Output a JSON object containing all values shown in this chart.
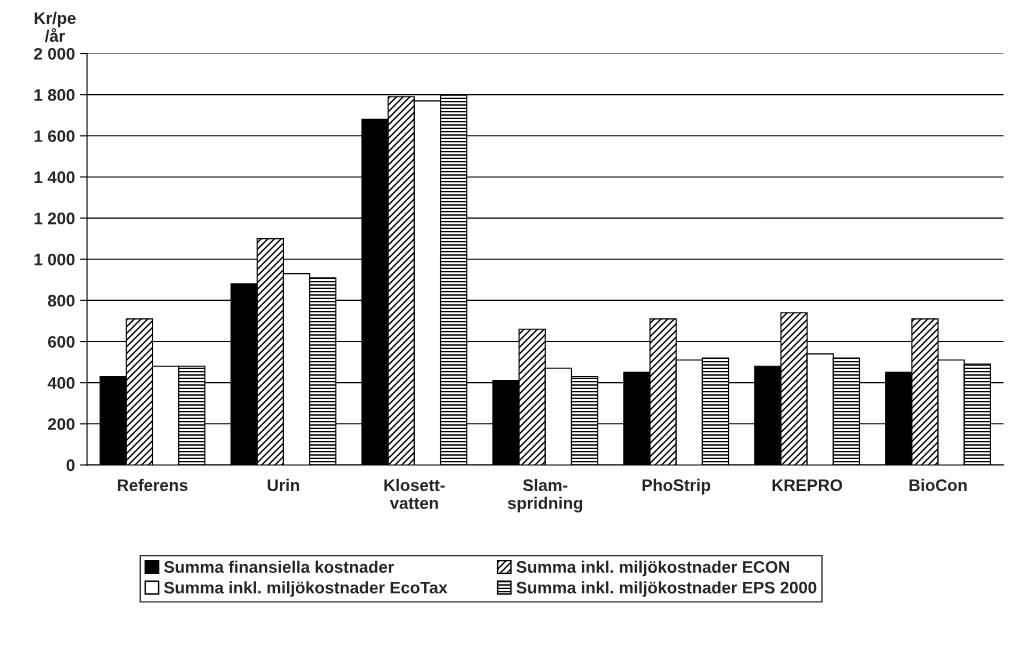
{
  "chart_data": {
    "type": "bar",
    "ylabel": "Kr/pe\n/år",
    "categories": [
      "Referens",
      "Urin",
      "Klosett-\nvatten",
      "Slam-\nspridning",
      "PhoStrip",
      "KREPRO",
      "BioCon"
    ],
    "series": [
      {
        "name": "Summa finansiella kostnader",
        "color": "#000000",
        "values": [
          430,
          880,
          1680,
          410,
          450,
          480,
          450
        ]
      },
      {
        "name": "Summa inkl. miljökostnader ECON",
        "color": "#000000",
        "values": [
          710,
          1100,
          1790,
          660,
          710,
          740,
          710
        ]
      },
      {
        "name": "Summa inkl. miljökostnader EcoTax",
        "color": "#ffffff",
        "values": [
          480,
          930,
          1770,
          470,
          510,
          540,
          510
        ]
      },
      {
        "name": "Summa inkl. miljökostnader EPS 2000",
        "color": "#000000",
        "values": [
          480,
          910,
          1800,
          430,
          520,
          520,
          490
        ]
      }
    ],
    "ylim": [
      0,
      2000
    ],
    "yticks": [
      0,
      200,
      400,
      600,
      800,
      {
        "value": 1000,
        "label": "1 000"
      },
      {
        "value": 1200,
        "label": "1 200"
      },
      {
        "value": 1400,
        "label": "1 400"
      },
      {
        "value": 1600,
        "label": "1 600"
      },
      {
        "value": 1800,
        "label": "1 800"
      },
      {
        "value": 2000,
        "label": "2 000"
      }
    ],
    "grid": "y",
    "legend": "bottom"
  }
}
